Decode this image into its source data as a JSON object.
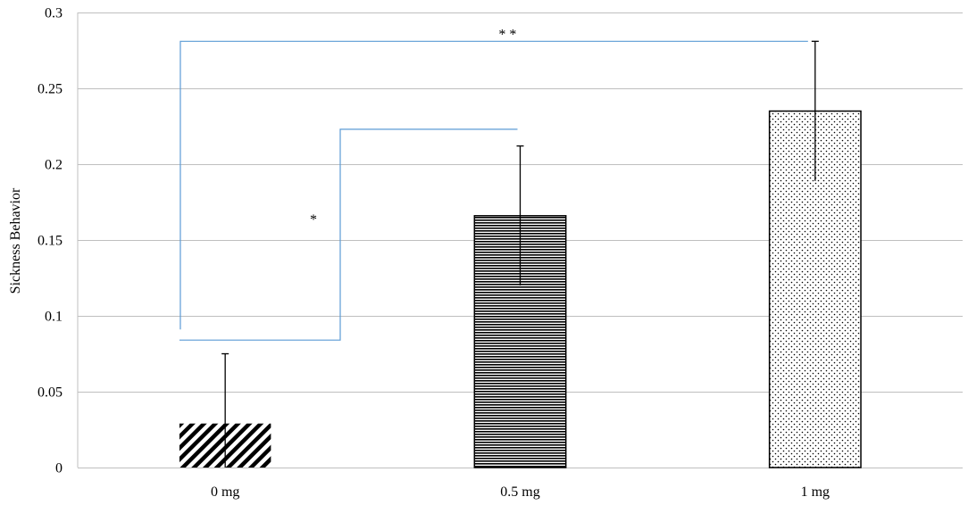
{
  "chart_data": {
    "type": "bar",
    "title": "",
    "xlabel": "",
    "ylabel": "Sickness Behavior",
    "categories": [
      "0 mg",
      "0.5 mg",
      "1 mg"
    ],
    "values": [
      0.029,
      0.166,
      0.235
    ],
    "errors": [
      0.046,
      0.046,
      0.046
    ],
    "ylim": [
      0,
      0.3
    ],
    "yticks": [
      0,
      0.05,
      0.1,
      0.15,
      0.2,
      0.25,
      0.3
    ],
    "ytick_labels": [
      "0",
      "0.05",
      "0.1",
      "0.15",
      "0.2",
      "0.25",
      "0.3"
    ],
    "grid": true,
    "bar_patterns": [
      "diagonal-stripes",
      "horizontal-lines",
      "dots"
    ],
    "bracket_color": "#5B9BD5",
    "significance": [
      {
        "from": "0 mg",
        "to": "0.5 mg",
        "label": "*",
        "level_low": 0.084,
        "level_high": 0.223
      },
      {
        "from": "0 mg",
        "to": "1 mg",
        "label": "* *",
        "level_low": 0.091,
        "level_high": 0.281
      }
    ]
  }
}
